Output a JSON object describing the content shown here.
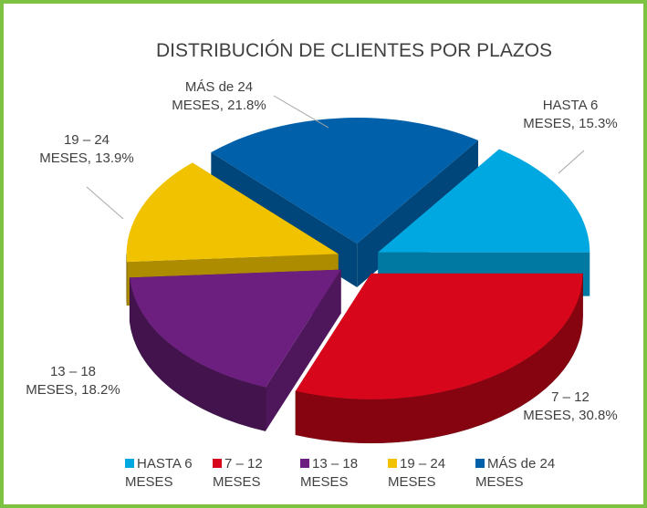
{
  "chart_data": {
    "type": "pie3d",
    "title": "DISTRIBUCIÓN DE CLIENTES POR PLAZOS",
    "categories": [
      "HASTA 6 MESES",
      "7 – 12 MESES",
      "13 – 18 MESES",
      "19 – 24 MESES",
      "MÁS de 24 MESES"
    ],
    "values": [
      15.3,
      30.8,
      18.2,
      13.9,
      21.8
    ],
    "value_labels": [
      "HASTA 6 MESES, 15.3%",
      "7 – 12 MESES, 30.8%",
      "13 – 18 MESES, 18.2%",
      "19 – 24 MESES, 13.9%",
      "MÁS de 24 MESES, 21.8%"
    ],
    "colors": [
      "#00a8e1",
      "#d8061a",
      "#6c1f7e",
      "#f1c200",
      "#0061aa"
    ],
    "legend": "bottom"
  }
}
